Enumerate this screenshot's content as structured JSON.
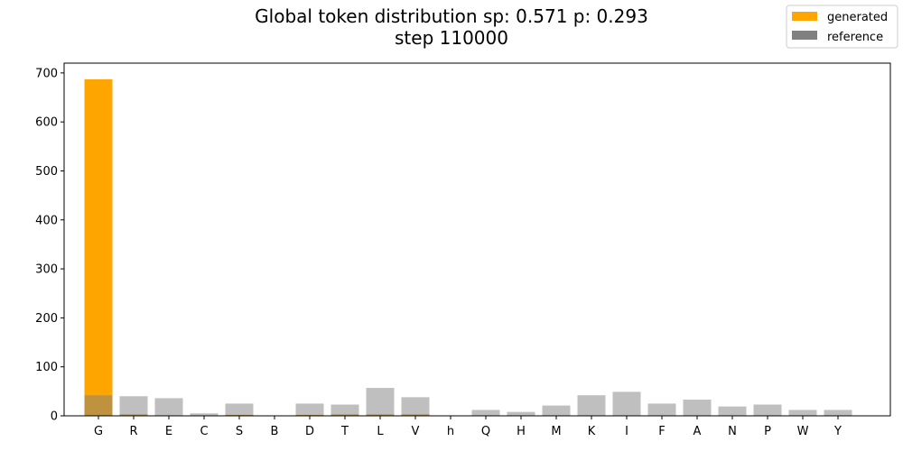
{
  "chart_data": {
    "type": "bar",
    "title_line1": "Global token distribution sp: 0.571 p: 0.293",
    "title_line2": "step 110000",
    "xlabel": "",
    "ylabel": "",
    "ylim": [
      0,
      720
    ],
    "yticks": [
      0,
      100,
      200,
      300,
      400,
      500,
      600,
      700
    ],
    "grid": false,
    "legend_position": "top-right",
    "categories": [
      "G",
      "R",
      "E",
      "C",
      "S",
      "B",
      "D",
      "T",
      "L",
      "V",
      "h",
      "Q",
      "H",
      "M",
      "K",
      "I",
      "F",
      "A",
      "N",
      "P",
      "W",
      "Y"
    ],
    "series": [
      {
        "name": "generated",
        "color": "#ffa500",
        "values": [
          687,
          3,
          0,
          0,
          2,
          0,
          2,
          3,
          3,
          3,
          0,
          0,
          0,
          0,
          0,
          0,
          0,
          0,
          0,
          0,
          0,
          0
        ]
      },
      {
        "name": "reference",
        "color": "#808080",
        "opacity": 1,
        "values": [
          42,
          40,
          36,
          5,
          25,
          0,
          25,
          23,
          57,
          38,
          0,
          12,
          8,
          21,
          42,
          49,
          25,
          33,
          19,
          23,
          12,
          12
        ]
      }
    ]
  }
}
